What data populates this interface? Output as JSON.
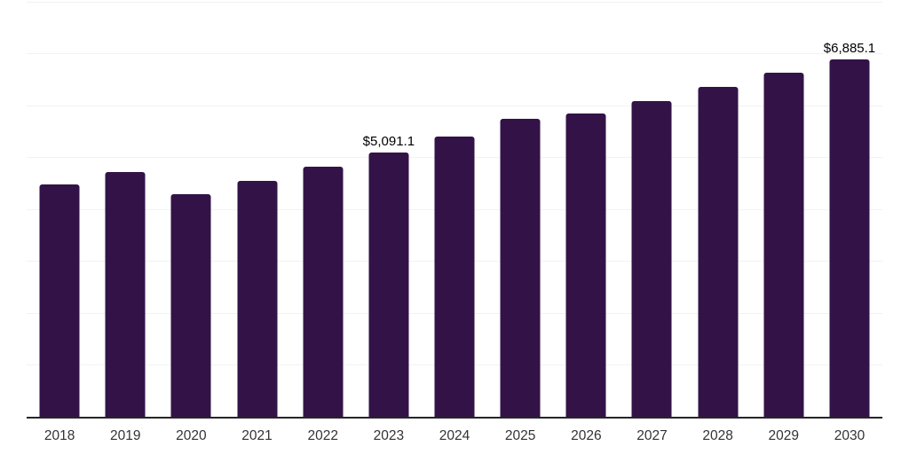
{
  "chart_data": {
    "type": "bar",
    "title": "",
    "xlabel": "",
    "ylabel": "",
    "categories": [
      "2018",
      "2019",
      "2020",
      "2021",
      "2022",
      "2023",
      "2024",
      "2025",
      "2026",
      "2027",
      "2028",
      "2029",
      "2030"
    ],
    "values": [
      4480,
      4710,
      4295,
      4550,
      4820,
      5091.1,
      5400,
      5740,
      5845,
      6085,
      6355,
      6630,
      6885.1
    ],
    "data_labels": {
      "2023": "$5,091.1",
      "2030": "$6,885.1"
    },
    "ylim": [
      0,
      8000
    ],
    "gridline_step": 1000,
    "grid": "horizontal",
    "legend": "none",
    "colors": {
      "bar": "#331347",
      "gridline": "#f2f2f2",
      "axis_line": "#262626",
      "tick_label": "#333333",
      "data_label": "#000000",
      "background": "#ffffff"
    }
  }
}
